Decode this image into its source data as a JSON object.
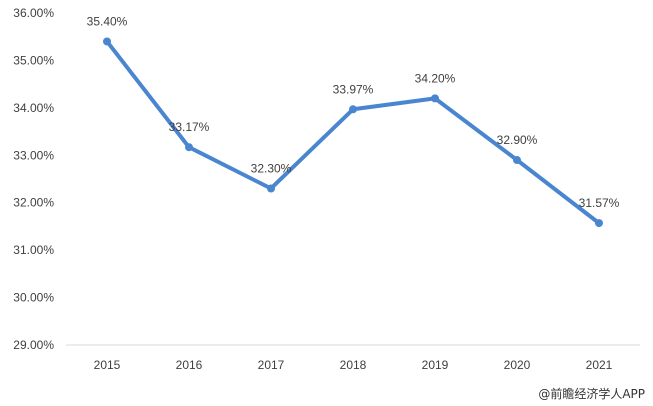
{
  "chart_data": {
    "type": "line",
    "x": [
      "2015",
      "2016",
      "2017",
      "2018",
      "2019",
      "2020",
      "2021"
    ],
    "series": [
      {
        "values": [
          35.4,
          33.17,
          32.3,
          33.97,
          34.2,
          32.9,
          31.57
        ]
      }
    ],
    "data_labels": [
      "35.40%",
      "33.17%",
      "32.30%",
      "33.97%",
      "34.20%",
      "32.90%",
      "31.57%"
    ],
    "y_ticks": [
      "29.00%",
      "30.00%",
      "31.00%",
      "32.00%",
      "33.00%",
      "34.00%",
      "35.00%",
      "36.00%"
    ],
    "ylim": [
      29,
      36
    ],
    "grid": false,
    "legend": "none",
    "line_color": "#4a86d0"
  },
  "credit": "@前瞻经济学人APP"
}
